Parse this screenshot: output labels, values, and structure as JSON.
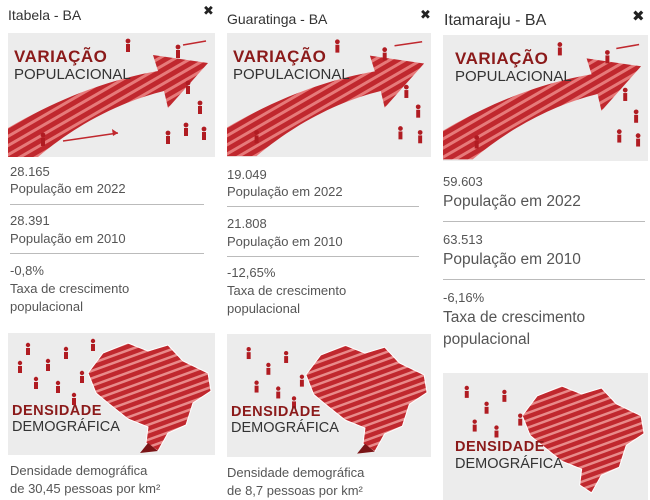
{
  "cards": [
    {
      "city": "Itabela - BA",
      "close": "✖",
      "banner_variation": {
        "line1": "VARIAÇÃO",
        "line2": "POPULACIONAL"
      },
      "pop_2022": {
        "value": "28.165",
        "label": "População em 2022"
      },
      "pop_2010": {
        "value": "28.391",
        "label": "População em 2010"
      },
      "growth": {
        "value": "-0,8%",
        "label_line1": "Taxa de crescimento",
        "label_line2": "populacional"
      },
      "banner_density": {
        "line1": "DENSIDADE",
        "line2": "DEMOGRÁFICA"
      },
      "density": {
        "line1": "Densidade demográfica",
        "line2": "de 30,45 pessoas por km²"
      }
    },
    {
      "city": "Guaratinga - BA",
      "close": "✖",
      "banner_variation": {
        "line1": "VARIAÇÃO",
        "line2": "POPULACIONAL"
      },
      "pop_2022": {
        "value": "19.049",
        "label": "População em 2022"
      },
      "pop_2010": {
        "value": "21.808",
        "label": "População em 2010"
      },
      "growth": {
        "value": "-12,65%",
        "label_line1": "Taxa de crescimento",
        "label_line2": "populacional"
      },
      "banner_density": {
        "line1": "DENSIDADE",
        "line2": "DEMOGRÁFICA"
      },
      "density": {
        "line1": "Densidade demográfica",
        "line2": "de 8,7 pessoas por km²"
      }
    },
    {
      "city": "Itamaraju - BA",
      "close": "✖",
      "banner_variation": {
        "line1": "VARIAÇÃO",
        "line2": "POPULACIONAL"
      },
      "pop_2022": {
        "value": "59.603",
        "label": "População em 2022"
      },
      "pop_2010": {
        "value": "63.513",
        "label": "População em 2010"
      },
      "growth": {
        "value": "-6,16%",
        "label_line1": "Taxa de crescimento",
        "label_line2": "populacional"
      },
      "banner_density": {
        "line1": "DENSIDADE",
        "line2": "DEMOGRÁFICA"
      }
    }
  ],
  "colors": {
    "accent": "#c0282e",
    "dark_red": "#8b1a1a",
    "banner_bg": "#ececec"
  },
  "icons": [
    "close-icon",
    "variation-arrow-illustration",
    "brazil-map-illustration",
    "person-icon"
  ]
}
